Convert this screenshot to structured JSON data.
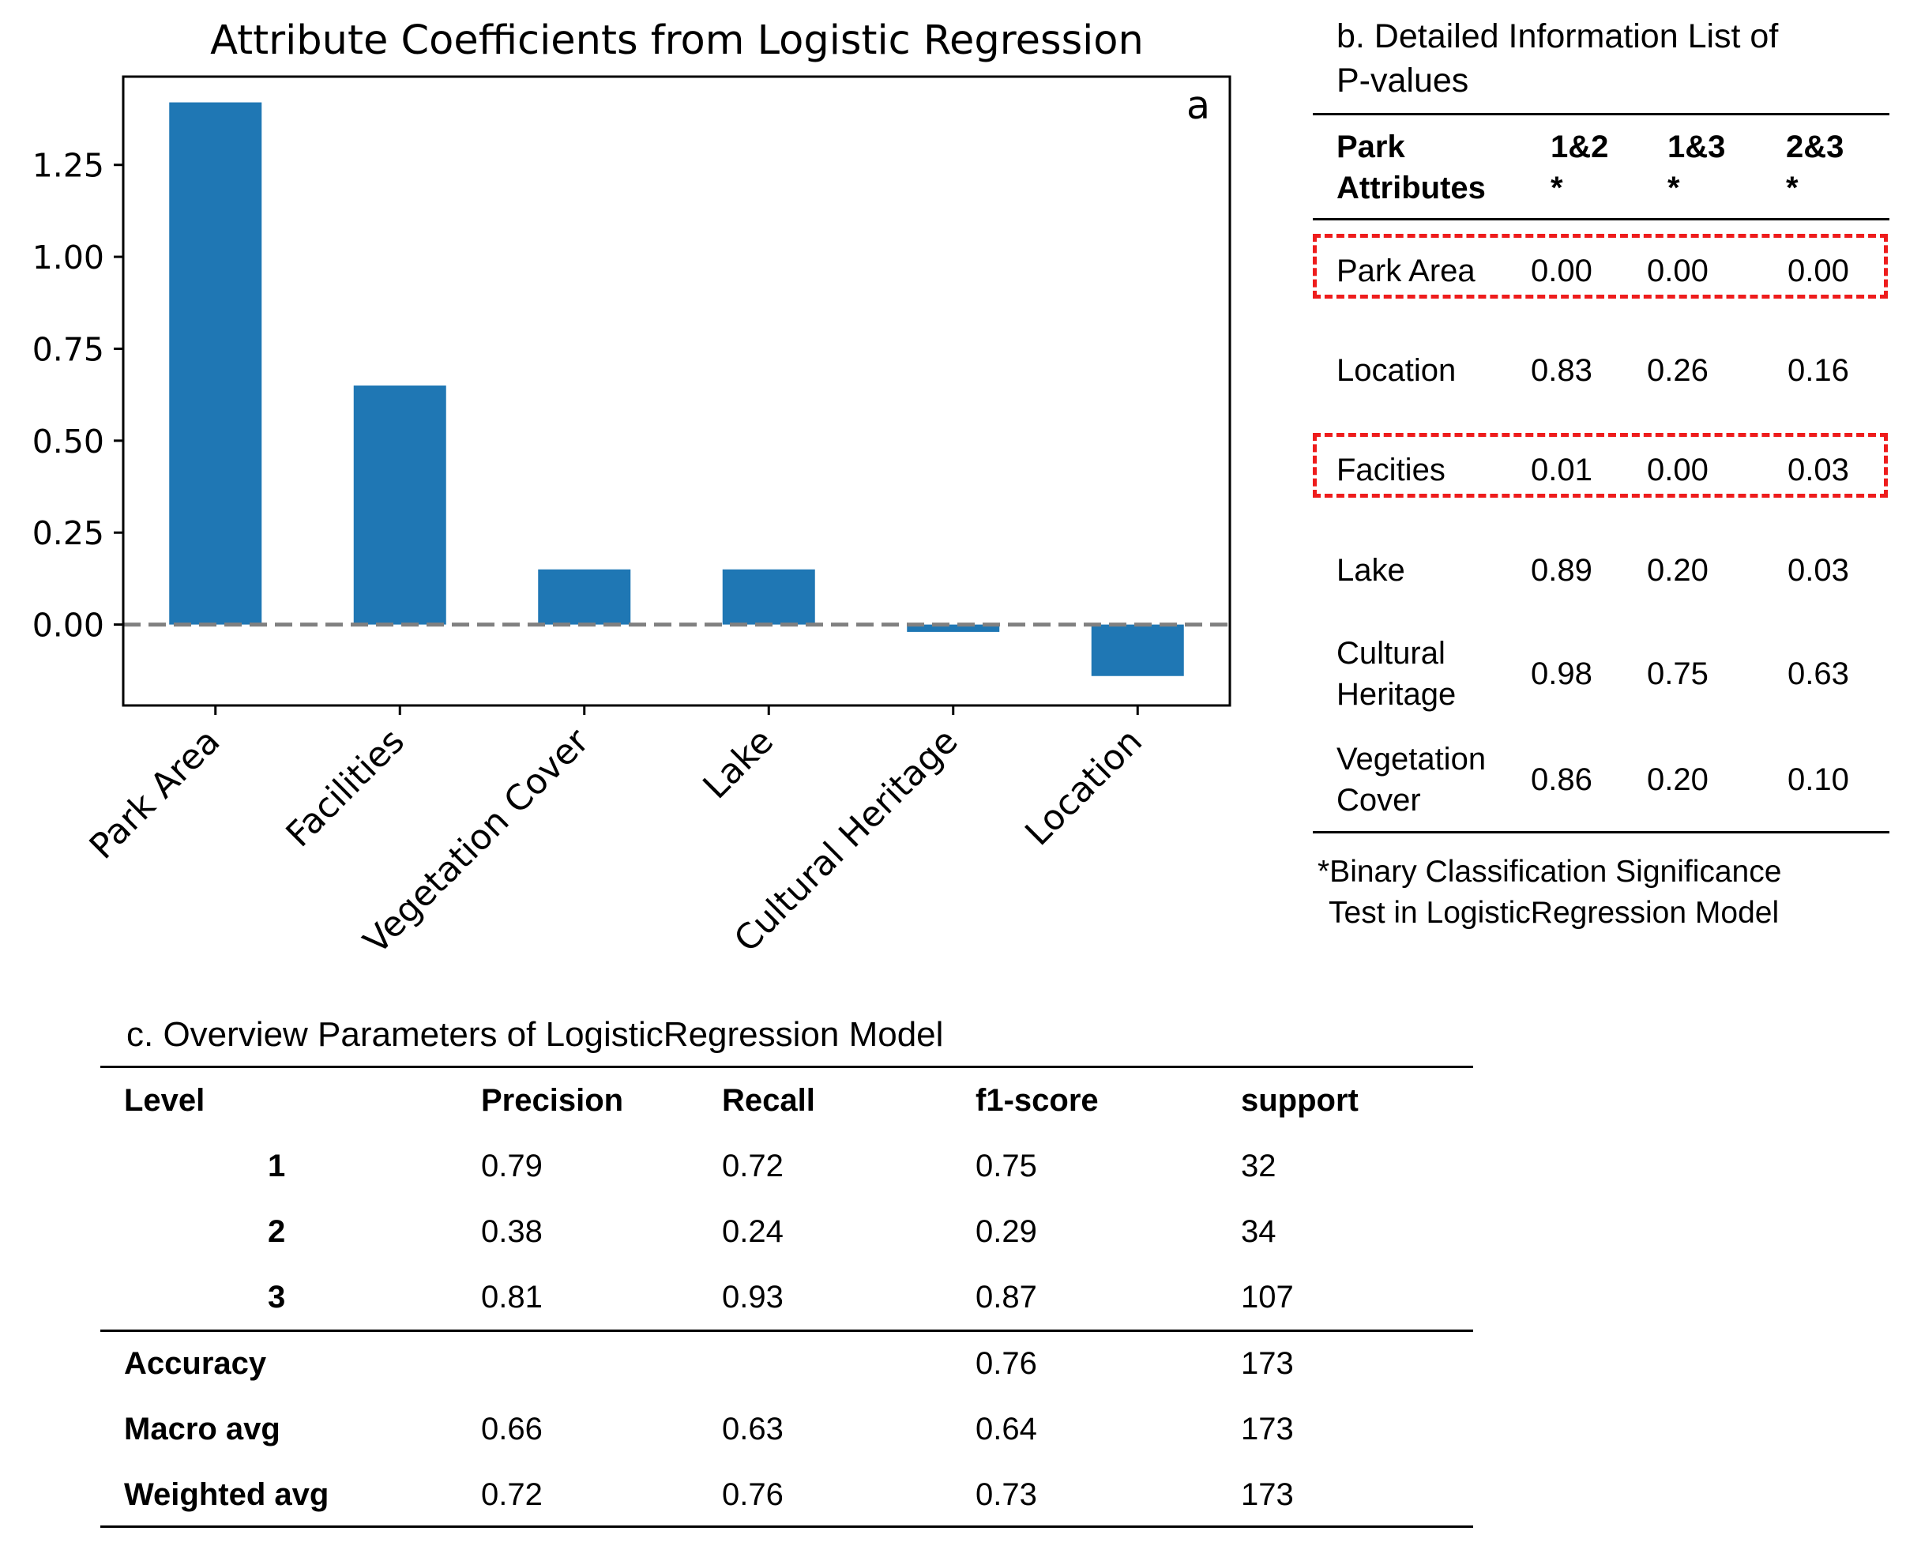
{
  "chart_data": {
    "type": "bar",
    "title": "Attribute Coefficients from Logistic Regression",
    "panel_label": "a",
    "categories": [
      "Park Area",
      "Facilities",
      "Vegetation Cover",
      "Lake",
      "Cultural Heritage",
      "Location"
    ],
    "values": [
      1.42,
      0.65,
      0.15,
      0.15,
      -0.02,
      -0.14
    ],
    "xlabel": "",
    "ylabel": "",
    "ylim": [
      -0.22,
      1.49
    ],
    "yticks": [
      0.0,
      0.25,
      0.5,
      0.75,
      1.0,
      1.25
    ],
    "ytick_labels": [
      "0.00",
      "0.25",
      "0.50",
      "0.75",
      "1.00",
      "1.25"
    ],
    "reference_line": 0,
    "grid": false,
    "bar_color": "#1f77b4",
    "reference_line_color": "#808080"
  },
  "pvalues_table": {
    "title_line1": "b. Detailed Information List of",
    "title_line2": "P-values",
    "headers": {
      "attr_line1": "Park",
      "attr_line2": "Attributes",
      "col1": "1&2",
      "col2": "1&3",
      "col3": "2&3",
      "star": "*"
    },
    "rows": [
      {
        "name1": "Park Area",
        "name2": "",
        "v12": "0.00",
        "v13": "0.00",
        "v23": "0.00",
        "highlighted": true
      },
      {
        "name1": "Location",
        "name2": "",
        "v12": "0.83",
        "v13": "0.26",
        "v23": "0.16",
        "highlighted": false
      },
      {
        "name1": "Facities",
        "name2": "",
        "v12": "0.01",
        "v13": "0.00",
        "v23": "0.03",
        "highlighted": true
      },
      {
        "name1": "Lake",
        "name2": "",
        "v12": "0.89",
        "v13": "0.20",
        "v23": "0.03",
        "highlighted": false
      },
      {
        "name1": "Cultural",
        "name2": "Heritage",
        "v12": "0.98",
        "v13": "0.75",
        "v23": "0.63",
        "highlighted": false
      },
      {
        "name1": "Vegetation",
        "name2": "Cover",
        "v12": "0.86",
        "v13": "0.20",
        "v23": "0.10",
        "highlighted": false
      }
    ],
    "footnote_line1": "*Binary Classification Significance",
    "footnote_line2": "Test in LogisticRegression Model",
    "highlight_color": "#ee1c1c"
  },
  "model_table": {
    "title": "c. Overview Parameters of LogisticRegression Model",
    "headers": [
      "Level",
      "Precision",
      "Recall",
      "f1-score",
      "support"
    ],
    "level_rows": [
      {
        "level": "1",
        "precision": "0.79",
        "recall": "0.72",
        "f1": "0.75",
        "support": "32"
      },
      {
        "level": "2",
        "precision": "0.38",
        "recall": "0.24",
        "f1": "0.29",
        "support": "34"
      },
      {
        "level": "3",
        "precision": "0.81",
        "recall": "0.93",
        "f1": "0.87",
        "support": "107"
      }
    ],
    "summary_rows": [
      {
        "label": "Accuracy",
        "precision": "",
        "recall": "",
        "f1": "0.76",
        "support": "173"
      },
      {
        "label": "Macro avg",
        "precision": "0.66",
        "recall": "0.63",
        "f1": "0.64",
        "support": "173"
      },
      {
        "label": "Weighted avg",
        "precision": "0.72",
        "recall": "0.76",
        "f1": "0.73",
        "support": "173"
      }
    ]
  }
}
